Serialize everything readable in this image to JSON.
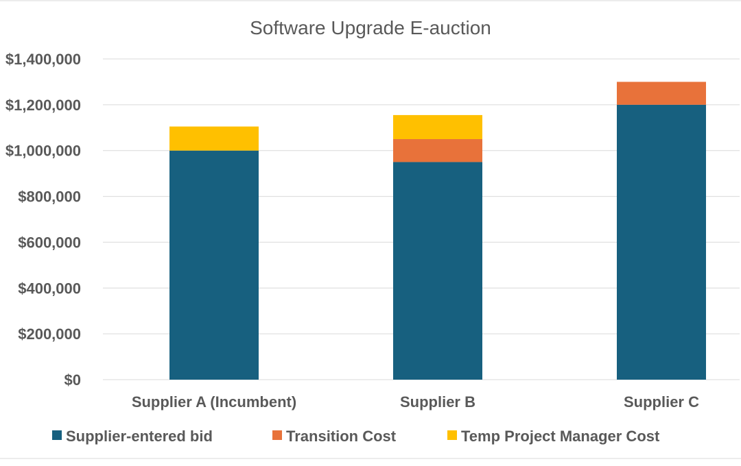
{
  "chart_data": {
    "type": "bar",
    "stacked": true,
    "title": "Software Upgrade E-auction",
    "xlabel": "",
    "ylabel": "",
    "categories": [
      "Supplier A (Incumbent)",
      "Supplier B",
      "Supplier C"
    ],
    "series": [
      {
        "name": "Supplier-entered bid",
        "values": [
          1000000,
          950000,
          1200000
        ],
        "color": "#17607f"
      },
      {
        "name": "Transition Cost",
        "values": [
          0,
          100000,
          100000
        ],
        "color": "#e8723a"
      },
      {
        "name": "Temp Project Manager Cost",
        "values": [
          105000,
          105000,
          0
        ],
        "color": "#ffc000"
      }
    ],
    "yticks": [
      0,
      200000,
      400000,
      600000,
      800000,
      1000000,
      1200000,
      1400000
    ],
    "ytick_labels": [
      "$0",
      "$200,000",
      "$400,000",
      "$600,000",
      "$800,000",
      "$1,000,000",
      "$1,200,000",
      "$1,400,000"
    ],
    "ylim": [
      0,
      1400000
    ],
    "grid": true,
    "legend_position": "bottom",
    "colors": {
      "gridline": "#d9d9d9",
      "text": "#595959",
      "frame": "#d9d9d9"
    }
  }
}
